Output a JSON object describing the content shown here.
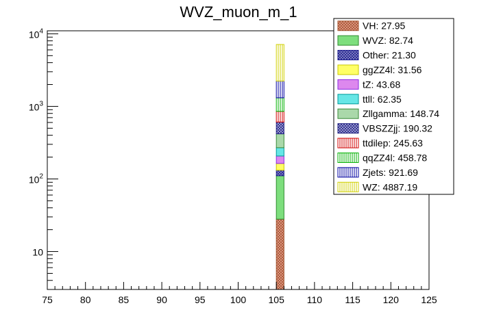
{
  "chart_data": {
    "type": "bar",
    "title": "WVZ_muon_m_1",
    "xlabel": "",
    "ylabel": "",
    "xlim": [
      75,
      125
    ],
    "ylim": [
      3,
      11000
    ],
    "y_scale": "log",
    "x_ticks": [
      "75",
      "80",
      "85",
      "90",
      "95",
      "100",
      "105",
      "110",
      "115",
      "120",
      "125"
    ],
    "y_ticks": [
      {
        "value": 10,
        "base": "10",
        "exp": ""
      },
      {
        "value": 100,
        "base": "10",
        "exp": "2"
      },
      {
        "value": 1000,
        "base": "10",
        "exp": "3"
      },
      {
        "value": 10000,
        "base": "10",
        "exp": "4"
      }
    ],
    "bin": [
      105,
      106
    ],
    "legend_position": "top-right",
    "stacked": true,
    "series": [
      {
        "name": "VH",
        "label": "VH: 27.95",
        "value": 27.95,
        "color": "#a0522d",
        "fill": "#e8a090",
        "pattern": "cross"
      },
      {
        "name": "WVZ",
        "label": "WVZ: 82.74",
        "value": 82.74,
        "color": "#2e8b2e",
        "fill": "#7dde7d",
        "pattern": "solid"
      },
      {
        "name": "Other",
        "label": "Other: 21.30",
        "value": 21.3,
        "color": "#1a1a8c",
        "fill": "#9090c8",
        "pattern": "cross"
      },
      {
        "name": "ggZZ4l",
        "label": "ggZZ4l: 31.56",
        "value": 31.56,
        "color": "#c8c800",
        "fill": "#ffff66",
        "pattern": "solid"
      },
      {
        "name": "tZ",
        "label": "tZ: 43.68",
        "value": 43.68,
        "color": "#8a2be2",
        "fill": "#dd88ee",
        "pattern": "solid"
      },
      {
        "name": "ttll",
        "label": "ttll: 62.35",
        "value": 62.35,
        "color": "#009999",
        "fill": "#66e6e6",
        "pattern": "solid"
      },
      {
        "name": "Zllgamma",
        "label": "Zllgamma: 148.74",
        "value": 148.74,
        "color": "#3a8a3a",
        "fill": "#aad8aa",
        "pattern": "solid"
      },
      {
        "name": "VBSZZjj",
        "label": "VBSZZjj: 190.32",
        "value": 190.32,
        "color": "#202080",
        "fill": "#b0b0e0",
        "pattern": "cross"
      },
      {
        "name": "ttdilep",
        "label": "ttdilep: 245.63",
        "value": 245.63,
        "color": "#d00000",
        "fill": "#ffffff",
        "pattern": "vlines"
      },
      {
        "name": "qqZZ4l",
        "label": "qqZZ4l: 458.78",
        "value": 458.78,
        "color": "#00b000",
        "fill": "#ffffff",
        "pattern": "vlines"
      },
      {
        "name": "Zjets",
        "label": "Zjets: 921.69",
        "value": 921.69,
        "color": "#0000a0",
        "fill": "#ffffff",
        "pattern": "vlines"
      },
      {
        "name": "WZ",
        "label": "WZ: 4887.19",
        "value": 4887.19,
        "color": "#d0d000",
        "fill": "#ffffff",
        "pattern": "vlines"
      }
    ]
  }
}
